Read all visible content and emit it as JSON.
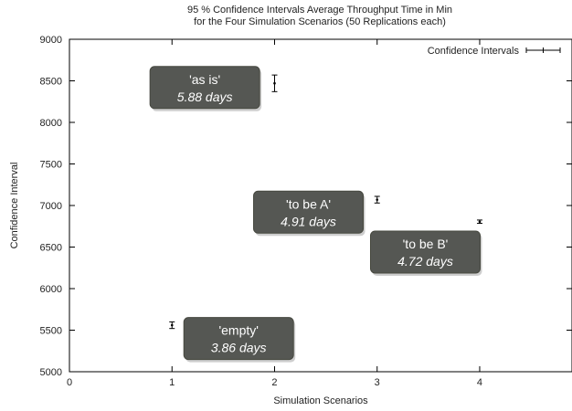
{
  "chart_data": {
    "type": "scatter",
    "title": "95 % Confidence Intervals Average Throughput Time in Min",
    "subtitle": "for the Four Simulation Scenarios (50 Replications each)",
    "xlabel": "Simulation Scenarios",
    "ylabel": "Confidence Interval",
    "xlim": [
      0,
      4.9
    ],
    "ylim": [
      5000,
      9000
    ],
    "xticks": [
      0,
      1,
      2,
      3,
      4
    ],
    "yticks": [
      5000,
      5500,
      6000,
      6500,
      7000,
      7500,
      8000,
      8500,
      9000
    ],
    "grid": false,
    "legend": {
      "label": "Confidence Intervals",
      "position": "top-right"
    },
    "series": [
      {
        "name": "Confidence Intervals",
        "points": [
          {
            "x": 1,
            "y": 5560,
            "low": 5520,
            "high": 5600
          },
          {
            "x": 2,
            "y": 8470,
            "low": 8370,
            "high": 8570
          },
          {
            "x": 3,
            "y": 7070,
            "low": 7030,
            "high": 7110
          },
          {
            "x": 4,
            "y": 6805,
            "low": 6785,
            "high": 6825
          }
        ]
      }
    ],
    "annotations": [
      {
        "line1": "'as is'",
        "line2": "5.88 days",
        "x": 1.32,
        "y": 8420
      },
      {
        "line1": "'to be A'",
        "line2": "4.91 days",
        "x": 2.33,
        "y": 6920
      },
      {
        "line1": "'to be B'",
        "line2": "4.72 days",
        "x": 3.47,
        "y": 6440
      },
      {
        "line1": "'empty'",
        "line2": "3.86 days",
        "x": 1.65,
        "y": 5400
      }
    ]
  }
}
